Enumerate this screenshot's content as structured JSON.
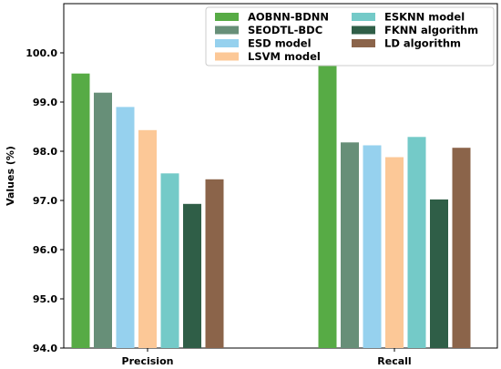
{
  "chart_data": {
    "type": "bar",
    "ylabel": "Values (%)",
    "ylim": [
      94.0,
      101.0
    ],
    "yticks": [
      "94.0",
      "95.0",
      "96.0",
      "97.0",
      "98.0",
      "99.0",
      "100.0"
    ],
    "categories": [
      "Precision",
      "Recall"
    ],
    "legend_position": "top-right",
    "grid": false,
    "series": [
      {
        "name": "AOBNN-BDNN",
        "color": "#57ab45",
        "values": [
          99.58,
          99.74
        ]
      },
      {
        "name": "SEODTL-BDC",
        "color": "#678f78",
        "values": [
          99.19,
          98.18
        ]
      },
      {
        "name": "ESD model",
        "color": "#96d1ee",
        "values": [
          98.9,
          98.12
        ]
      },
      {
        "name": "LSVM model",
        "color": "#fcc897",
        "values": [
          98.43,
          97.88
        ]
      },
      {
        "name": "ESKNN model",
        "color": "#74cac8",
        "values": [
          97.55,
          98.29
        ]
      },
      {
        "name": "FKNN algorithm",
        "color": "#2f5e47",
        "values": [
          96.93,
          97.02
        ]
      },
      {
        "name": "LD algorithm",
        "color": "#8b644a",
        "values": [
          97.43,
          98.07
        ]
      }
    ]
  }
}
